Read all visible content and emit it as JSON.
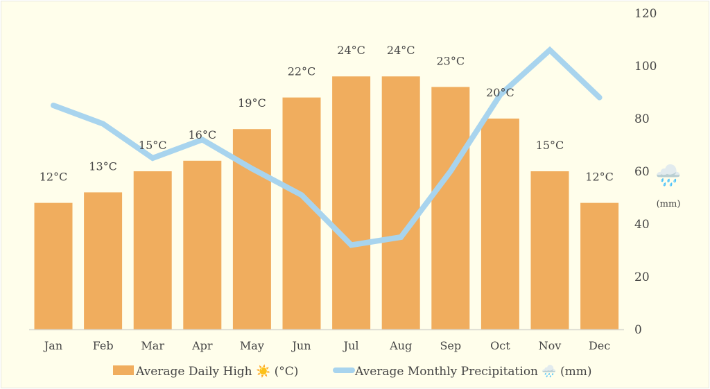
{
  "chart_data": {
    "type": "bar+line",
    "categories": [
      "Jan",
      "Feb",
      "Mar",
      "Apr",
      "May",
      "Jun",
      "Jul",
      "Aug",
      "Sep",
      "Oct",
      "Nov",
      "Dec"
    ],
    "series": [
      {
        "name": "Average Daily High ☀️ (°C)",
        "type": "bar",
        "axis": "left-hidden",
        "values": [
          12,
          13,
          15,
          16,
          19,
          22,
          24,
          24,
          23,
          20,
          15,
          12
        ],
        "labels": [
          "12°C",
          "13°C",
          "15°C",
          "16°C",
          "19°C",
          "22°C",
          "24°C",
          "24°C",
          "23°C",
          "20°C",
          "15°C",
          "12°C"
        ],
        "color": "#f0ad5e"
      },
      {
        "name": "Average Monthly Precipitation 🌧️ (mm)",
        "type": "line",
        "axis": "right",
        "values": [
          85,
          78,
          65,
          72,
          61,
          51,
          32,
          35,
          60,
          89,
          106,
          88
        ],
        "color": "#a8d4ee"
      }
    ],
    "left_axis_range": [
      0,
      30
    ],
    "right_axis": {
      "range": [
        0,
        120
      ],
      "ticks": [
        0,
        20,
        40,
        60,
        80,
        100,
        120
      ],
      "label_icon": "🌧️",
      "label": "(mm)"
    },
    "legend_position": "bottom",
    "grid": false,
    "background": "#fffeeb"
  }
}
